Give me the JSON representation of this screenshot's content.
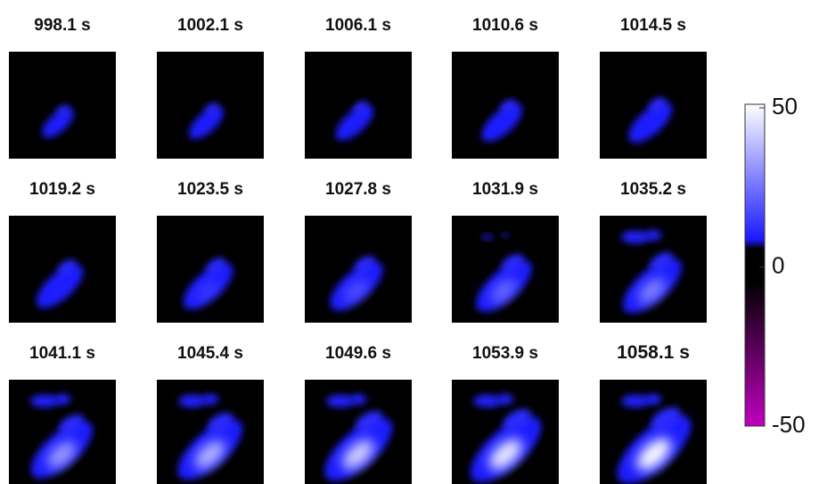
{
  "panels": [
    {
      "title": "998.1 s"
    },
    {
      "title": "1002.1 s"
    },
    {
      "title": "1006.1 s"
    },
    {
      "title": "1010.6 s"
    },
    {
      "title": "1014.5 s"
    },
    {
      "title": "1019.2 s"
    },
    {
      "title": "1023.5 s"
    },
    {
      "title": "1027.8 s"
    },
    {
      "title": "1031.9 s"
    },
    {
      "title": "1035.2 s"
    },
    {
      "title": "1041.1 s"
    },
    {
      "title": "1045.4 s"
    },
    {
      "title": "1049.6 s"
    },
    {
      "title": "1053.9 s"
    },
    {
      "title": "1058.1 s"
    }
  ],
  "colorbar": {
    "range": [
      -50,
      50
    ],
    "ticks": [
      50,
      0,
      -50
    ]
  }
}
